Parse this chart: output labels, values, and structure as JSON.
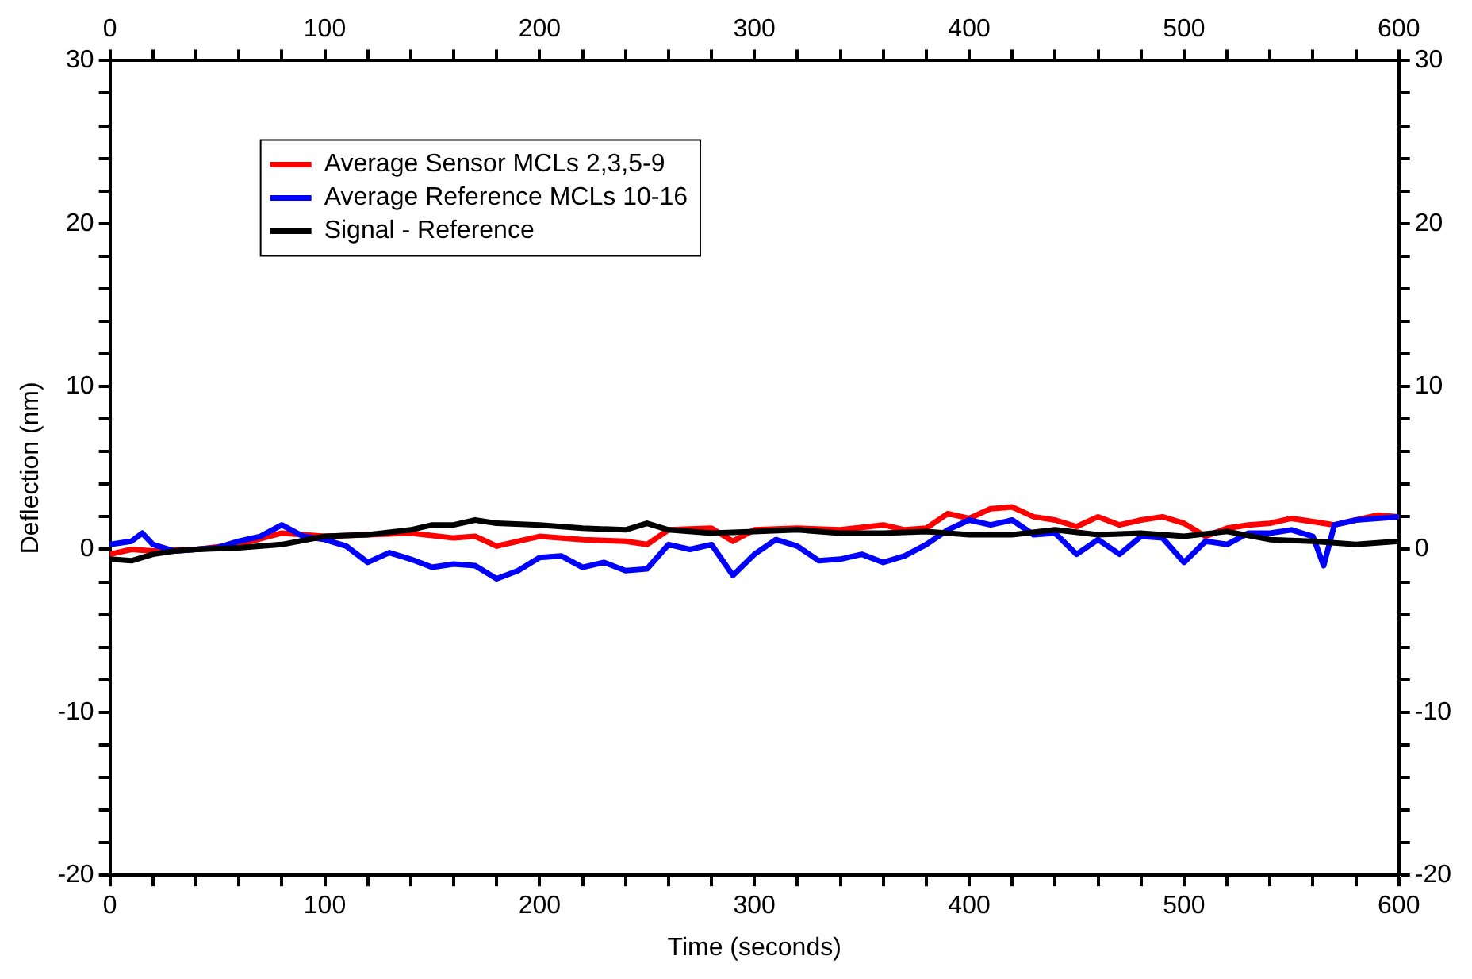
{
  "chart_data": {
    "type": "line",
    "xlabel": "Time (seconds)",
    "ylabel": "Deflection (nm)",
    "grid": false,
    "legend": "top left",
    "marker": "none",
    "line_style": "solid",
    "xlim": [
      0,
      600
    ],
    "ylim": [
      -20,
      30
    ],
    "x2lim": [
      0,
      600
    ],
    "y2lim": [
      -20,
      30
    ],
    "xticks": [
      0,
      {
        "value": 20,
        "label": null
      },
      {
        "value": 40,
        "label": null
      },
      {
        "value": 60,
        "label": null
      },
      {
        "value": 80,
        "label": null
      },
      100,
      {
        "value": 120,
        "label": null
      },
      {
        "value": 140,
        "label": null
      },
      {
        "value": 160,
        "label": null
      },
      {
        "value": 180,
        "label": null
      },
      200,
      {
        "value": 220,
        "label": null
      },
      {
        "value": 240,
        "label": null
      },
      {
        "value": 260,
        "label": null
      },
      {
        "value": 280,
        "label": null
      },
      300,
      {
        "value": 320,
        "label": null
      },
      {
        "value": 340,
        "label": null
      },
      {
        "value": 360,
        "label": null
      },
      {
        "value": 380,
        "label": null
      },
      400,
      {
        "value": 420,
        "label": null
      },
      {
        "value": 440,
        "label": null
      },
      {
        "value": 460,
        "label": null
      },
      {
        "value": 480,
        "label": null
      },
      500,
      {
        "value": 520,
        "label": null
      },
      {
        "value": 540,
        "label": null
      },
      {
        "value": 560,
        "label": null
      },
      {
        "value": 580,
        "label": null
      },
      600
    ],
    "x2ticks": [
      0,
      {
        "value": 20,
        "label": null
      },
      {
        "value": 40,
        "label": null
      },
      {
        "value": 60,
        "label": null
      },
      {
        "value": 80,
        "label": null
      },
      100,
      {
        "value": 120,
        "label": null
      },
      {
        "value": 140,
        "label": null
      },
      {
        "value": 160,
        "label": null
      },
      {
        "value": 180,
        "label": null
      },
      200,
      {
        "value": 220,
        "label": null
      },
      {
        "value": 240,
        "label": null
      },
      {
        "value": 260,
        "label": null
      },
      {
        "value": 280,
        "label": null
      },
      300,
      {
        "value": 320,
        "label": null
      },
      {
        "value": 340,
        "label": null
      },
      {
        "value": 360,
        "label": null
      },
      {
        "value": 380,
        "label": null
      },
      400,
      {
        "value": 420,
        "label": null
      },
      {
        "value": 440,
        "label": null
      },
      {
        "value": 460,
        "label": null
      },
      {
        "value": 480,
        "label": null
      },
      500,
      {
        "value": 520,
        "label": null
      },
      {
        "value": 540,
        "label": null
      },
      {
        "value": 560,
        "label": null
      },
      {
        "value": 580,
        "label": null
      },
      600
    ],
    "yticks": [
      -20,
      {
        "value": -18,
        "label": null
      },
      {
        "value": -16,
        "label": null
      },
      {
        "value": -14,
        "label": null
      },
      {
        "value": -12,
        "label": null
      },
      -10,
      {
        "value": -8,
        "label": null
      },
      {
        "value": -6,
        "label": null
      },
      {
        "value": -4,
        "label": null
      },
      {
        "value": -2,
        "label": null
      },
      0,
      {
        "value": 2,
        "label": null
      },
      {
        "value": 4,
        "label": null
      },
      {
        "value": 6,
        "label": null
      },
      {
        "value": 8,
        "label": null
      },
      10,
      {
        "value": 12,
        "label": null
      },
      {
        "value": 14,
        "label": null
      },
      {
        "value": 16,
        "label": null
      },
      {
        "value": 18,
        "label": null
      },
      20,
      {
        "value": 22,
        "label": null
      },
      {
        "value": 24,
        "label": null
      },
      {
        "value": 26,
        "label": null
      },
      {
        "value": 28,
        "label": null
      },
      30
    ],
    "y2ticks": [
      -20,
      {
        "value": -18,
        "label": null
      },
      {
        "value": -16,
        "label": null
      },
      {
        "value": -14,
        "label": null
      },
      {
        "value": -12,
        "label": null
      },
      -10,
      {
        "value": -8,
        "label": null
      },
      {
        "value": -6,
        "label": null
      },
      {
        "value": -4,
        "label": null
      },
      {
        "value": -2,
        "label": null
      },
      0,
      {
        "value": 2,
        "label": null
      },
      {
        "value": 4,
        "label": null
      },
      {
        "value": 6,
        "label": null
      },
      {
        "value": 8,
        "label": null
      },
      10,
      {
        "value": 12,
        "label": null
      },
      {
        "value": 14,
        "label": null
      },
      {
        "value": 16,
        "label": null
      },
      {
        "value": 18,
        "label": null
      },
      20,
      {
        "value": 22,
        "label": null
      },
      {
        "value": 24,
        "label": null
      },
      {
        "value": 26,
        "label": null
      },
      {
        "value": 28,
        "label": null
      },
      30
    ],
    "series": [
      {
        "name": "Average Sensor MCLs 2,3,5-9",
        "color": "#ff0000",
        "x": [
          0,
          10,
          20,
          40,
          60,
          80,
          100,
          120,
          140,
          160,
          170,
          180,
          200,
          220,
          240,
          250,
          260,
          280,
          290,
          300,
          320,
          340,
          360,
          370,
          380,
          390,
          400,
          410,
          420,
          430,
          440,
          450,
          460,
          470,
          480,
          490,
          500,
          510,
          520,
          530,
          540,
          550,
          560,
          570,
          580,
          590,
          600
        ],
        "values": [
          -0.3,
          0,
          -0.1,
          0,
          0.3,
          1.0,
          0.8,
          0.9,
          1.0,
          0.7,
          0.8,
          0.2,
          0.8,
          0.6,
          0.5,
          0.3,
          1.2,
          1.3,
          0.5,
          1.2,
          1.3,
          1.2,
          1.5,
          1.2,
          1.3,
          2.2,
          1.9,
          2.5,
          2.6,
          2.0,
          1.8,
          1.4,
          2.0,
          1.5,
          1.8,
          2.0,
          1.6,
          0.8,
          1.3,
          1.5,
          1.6,
          1.9,
          1.7,
          1.5,
          1.8,
          2.1,
          2.0
        ]
      },
      {
        "name": "Average Reference MCLs 10-16",
        "color": "#0000ff",
        "x": [
          0,
          10,
          15,
          20,
          30,
          40,
          50,
          60,
          70,
          80,
          90,
          100,
          110,
          120,
          130,
          140,
          150,
          160,
          170,
          180,
          190,
          200,
          210,
          220,
          230,
          240,
          250,
          260,
          270,
          280,
          290,
          300,
          310,
          320,
          330,
          340,
          350,
          360,
          370,
          380,
          390,
          400,
          410,
          420,
          430,
          440,
          450,
          460,
          470,
          480,
          490,
          500,
          510,
          520,
          530,
          540,
          550,
          560,
          565,
          570,
          580,
          590,
          600
        ],
        "values": [
          0.3,
          0.5,
          1.0,
          0.3,
          -0.1,
          0,
          0.1,
          0.5,
          0.8,
          1.5,
          0.8,
          0.6,
          0.2,
          -0.8,
          -0.2,
          -0.6,
          -1.1,
          -0.9,
          -1.0,
          -1.8,
          -1.3,
          -0.5,
          -0.4,
          -1.1,
          -0.8,
          -1.3,
          -1.2,
          0.3,
          0.0,
          0.3,
          -1.6,
          -0.3,
          0.6,
          0.2,
          -0.7,
          -0.6,
          -0.3,
          -0.8,
          -0.4,
          0.3,
          1.2,
          1.8,
          1.5,
          1.8,
          0.9,
          1.0,
          -0.3,
          0.6,
          -0.3,
          0.8,
          0.7,
          -0.8,
          0.5,
          0.3,
          1.0,
          1.0,
          1.2,
          0.8,
          -1.0,
          1.5,
          1.8,
          1.9,
          2.0
        ]
      },
      {
        "name": "Signal - Reference",
        "color": "#000000",
        "x": [
          0,
          10,
          20,
          30,
          40,
          60,
          80,
          100,
          120,
          140,
          150,
          160,
          170,
          180,
          200,
          220,
          240,
          250,
          260,
          280,
          300,
          320,
          340,
          360,
          380,
          400,
          420,
          440,
          460,
          480,
          500,
          520,
          540,
          560,
          580,
          600
        ],
        "values": [
          -0.6,
          -0.7,
          -0.3,
          -0.1,
          0,
          0.1,
          0.3,
          0.8,
          0.9,
          1.2,
          1.5,
          1.5,
          1.8,
          1.6,
          1.5,
          1.3,
          1.2,
          1.6,
          1.2,
          1.0,
          1.1,
          1.2,
          1.0,
          1.0,
          1.1,
          0.9,
          0.9,
          1.2,
          0.9,
          1.0,
          0.8,
          1.1,
          0.6,
          0.5,
          0.3,
          0.5
        ]
      }
    ]
  }
}
